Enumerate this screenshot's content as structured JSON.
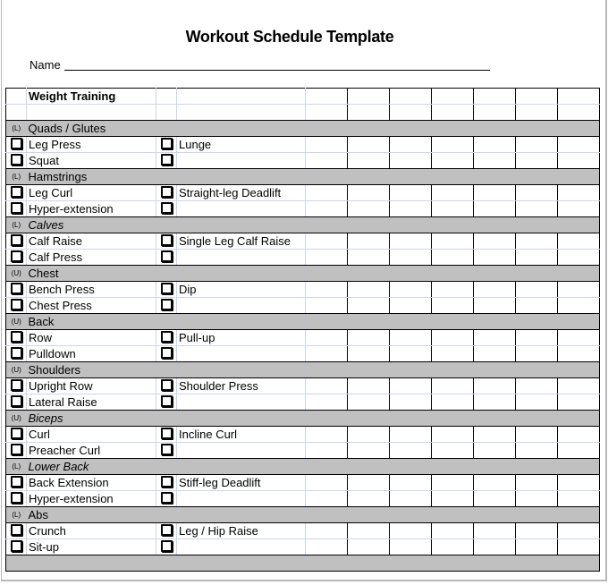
{
  "title": "Workout Schedule Template",
  "name_label": "Name",
  "table_header": "Weight Training",
  "day_columns": 7,
  "sections": [
    {
      "marker": "(L)",
      "name": "Quads / Glutes",
      "italic": false,
      "rows": [
        [
          "Leg Press",
          "Lunge"
        ],
        [
          "Squat",
          ""
        ]
      ]
    },
    {
      "marker": "(L)",
      "name": "Hamstrings",
      "italic": false,
      "rows": [
        [
          "Leg Curl",
          "Straight-leg Deadlift"
        ],
        [
          "Hyper-extension",
          ""
        ]
      ]
    },
    {
      "marker": "(L)",
      "name": "Calves",
      "italic": true,
      "rows": [
        [
          "Calf Raise",
          "Single Leg Calf Raise"
        ],
        [
          "Calf Press",
          ""
        ]
      ]
    },
    {
      "marker": "(U)",
      "name": "Chest",
      "italic": false,
      "rows": [
        [
          "Bench Press",
          "Dip"
        ],
        [
          "Chest Press",
          ""
        ]
      ]
    },
    {
      "marker": "(U)",
      "name": "Back",
      "italic": false,
      "rows": [
        [
          "Row",
          "Pull-up"
        ],
        [
          "Pulldown",
          ""
        ]
      ]
    },
    {
      "marker": "(U)",
      "name": "Shoulders",
      "italic": false,
      "rows": [
        [
          "Upright Row",
          "Shoulder Press"
        ],
        [
          "Lateral Raise",
          ""
        ]
      ]
    },
    {
      "marker": "(U)",
      "name": "Biceps",
      "italic": true,
      "rows": [
        [
          "Curl",
          "Incline Curl"
        ],
        [
          "Preacher Curl",
          ""
        ]
      ]
    },
    {
      "marker": "(L)",
      "name": "Lower Back",
      "italic": true,
      "rows": [
        [
          "Back Extension",
          "Stiff-leg Deadlift"
        ],
        [
          "Hyper-extension",
          ""
        ]
      ]
    },
    {
      "marker": "(L)",
      "name": "Abs",
      "italic": false,
      "rows": [
        [
          "Crunch",
          "Leg / Hip Raise"
        ],
        [
          "Sit-up",
          ""
        ]
      ]
    }
  ]
}
